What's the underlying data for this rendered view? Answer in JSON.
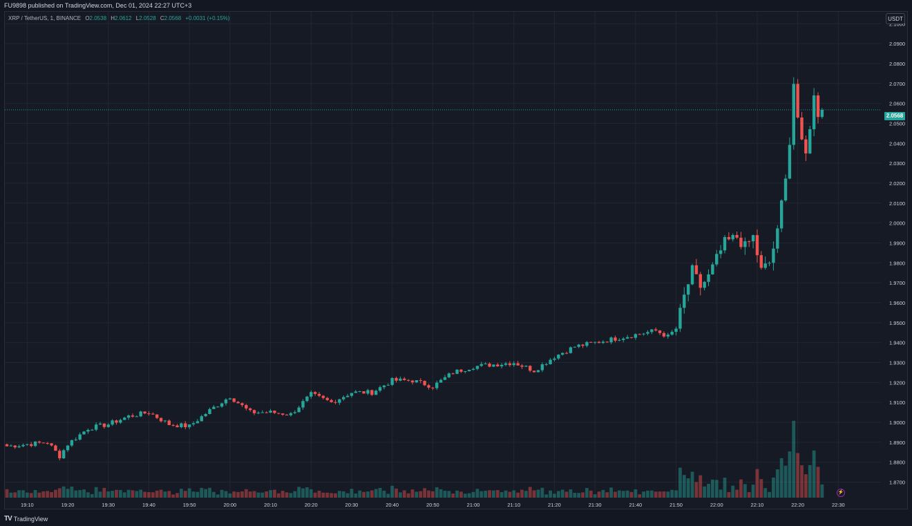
{
  "header": {
    "published": "FU9898 published on TradingView.com, Dec 01, 2024 22:27 UTC+3"
  },
  "legend": {
    "symbol": "XRP / TetherUS, 1, BINANCE",
    "o_key": "O",
    "o_val": "2.0538",
    "h_key": "H",
    "h_val": "2.0612",
    "l_key": "L",
    "l_val": "2.0528",
    "c_key": "C",
    "c_val": "2.0568",
    "change": "+0.0031 (+0.15%)"
  },
  "toolbar": {
    "currency": "USDT"
  },
  "last_price": "2.0568",
  "footer": {
    "brand": "TradingView"
  },
  "colors": {
    "up": "#26a69a",
    "down": "#ef5350",
    "background": "#161a25",
    "grid": "#222631"
  },
  "chart_data": {
    "type": "candlestick",
    "symbol": "XRP / TetherUS",
    "interval": "1",
    "exchange": "BINANCE",
    "y_ticks": [
      "2.1000",
      "2.0900",
      "2.0800",
      "2.0700",
      "2.0600",
      "2.0500",
      "2.0400",
      "2.0300",
      "2.0200",
      "2.0100",
      "2.0000",
      "1.9900",
      "1.9800",
      "1.9700",
      "1.9600",
      "1.9500",
      "1.9400",
      "1.9300",
      "1.9200",
      "1.9100",
      "1.9000",
      "1.8900",
      "1.8800",
      "1.8700"
    ],
    "ylim": [
      1.8615,
      2.106
    ],
    "x_ticks": [
      "19:10",
      "19:20",
      "19:30",
      "19:40",
      "19:50",
      "20:00",
      "20:10",
      "20:20",
      "20:30",
      "20:40",
      "20:50",
      "21:00",
      "21:10",
      "21:20",
      "21:30",
      "21:40",
      "21:50",
      "22:00",
      "22:10",
      "22:20",
      "22:30"
    ],
    "x_start": "19:05",
    "close_anchors": [
      [
        "19:05",
        1.888
      ],
      [
        "19:10",
        1.889
      ],
      [
        "19:15",
        1.89
      ],
      [
        "19:18",
        1.883
      ],
      [
        "19:20",
        1.889
      ],
      [
        "19:25",
        1.897
      ],
      [
        "19:30",
        1.899
      ],
      [
        "19:35",
        1.903
      ],
      [
        "19:40",
        1.905
      ],
      [
        "19:45",
        1.899
      ],
      [
        "19:50",
        1.898
      ],
      [
        "19:55",
        1.906
      ],
      [
        "20:00",
        1.913
      ],
      [
        "20:05",
        1.905
      ],
      [
        "20:10",
        1.905
      ],
      [
        "20:15",
        1.904
      ],
      [
        "20:20",
        1.914
      ],
      [
        "20:25",
        1.91
      ],
      [
        "20:30",
        1.915
      ],
      [
        "20:35",
        1.915
      ],
      [
        "20:40",
        1.921
      ],
      [
        "20:45",
        1.921
      ],
      [
        "20:50",
        1.918
      ],
      [
        "20:55",
        1.925
      ],
      [
        "21:00",
        1.928
      ],
      [
        "21:05",
        1.929
      ],
      [
        "21:10",
        1.93
      ],
      [
        "21:15",
        1.926
      ],
      [
        "21:20",
        1.933
      ],
      [
        "21:25",
        1.938
      ],
      [
        "21:30",
        1.94
      ],
      [
        "21:35",
        1.942
      ],
      [
        "21:40",
        1.944
      ],
      [
        "21:45",
        1.946
      ],
      [
        "21:48",
        1.943
      ],
      [
        "21:50",
        1.947
      ],
      [
        "21:52",
        1.963
      ],
      [
        "21:54",
        1.976
      ],
      [
        "21:56",
        1.968
      ],
      [
        "21:58",
        1.973
      ],
      [
        "22:00",
        1.982
      ],
      [
        "22:02",
        1.99
      ],
      [
        "22:05",
        1.993
      ],
      [
        "22:07",
        1.988
      ],
      [
        "22:09",
        1.993
      ],
      [
        "22:11",
        1.976
      ],
      [
        "22:13",
        1.98
      ],
      [
        "22:15",
        1.995
      ],
      [
        "22:17",
        2.025
      ],
      [
        "22:18",
        2.04
      ],
      [
        "22:19",
        2.07
      ],
      [
        "22:20",
        2.05
      ],
      [
        "22:21",
        2.041
      ],
      [
        "22:22",
        2.037
      ],
      [
        "22:23",
        2.046
      ],
      [
        "22:24",
        2.066
      ],
      [
        "22:25",
        2.055
      ],
      [
        "22:26",
        2.0568
      ]
    ],
    "volume_max": 1.0
  }
}
